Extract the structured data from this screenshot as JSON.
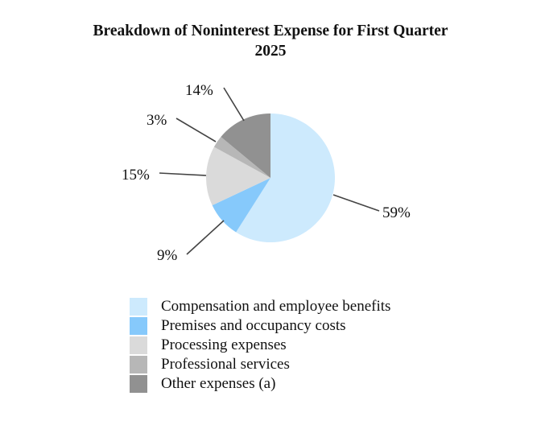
{
  "chart_data": {
    "type": "pie",
    "title_lines": [
      "Breakdown of Noninterest Expense for First Quarter",
      "2025"
    ],
    "slices": [
      {
        "label": "Compensation and employee benefits",
        "value": 59,
        "value_label": "59%",
        "color": "#cdeafd"
      },
      {
        "label": "Premises and occupancy costs",
        "value": 9,
        "value_label": "9%",
        "color": "#86c9fb"
      },
      {
        "label": "Processing expenses",
        "value": 15,
        "value_label": "15%",
        "color": "#dadada"
      },
      {
        "label": "Professional services",
        "value": 3,
        "value_label": "3%",
        "color": "#b7b7b7"
      },
      {
        "label": "Other expenses (a)",
        "value": 14,
        "value_label": "14%",
        "color": "#919191"
      }
    ],
    "start": "12 o'clock",
    "direction": "clockwise",
    "legend_position": "bottom"
  }
}
